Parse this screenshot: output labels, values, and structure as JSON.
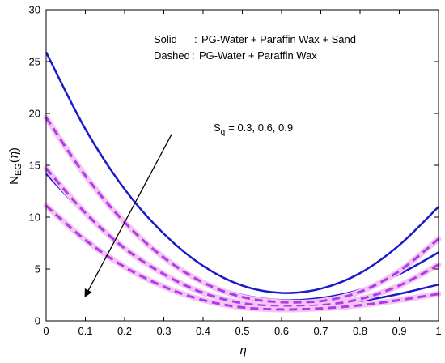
{
  "chart_data": {
    "type": "line",
    "xlabel": "η",
    "ylabel": {
      "main": "N",
      "sub": "EG",
      "arg_open": "(",
      "arg": "η",
      "arg_close": ")"
    },
    "xlim": [
      0,
      1
    ],
    "ylim": [
      0,
      30
    ],
    "xticks": [
      0,
      0.1,
      0.2,
      0.3,
      0.4,
      0.5,
      0.6,
      0.7,
      0.8,
      0.9,
      1
    ],
    "yticks": [
      0,
      5,
      10,
      15,
      20,
      25,
      30
    ],
    "xtick_labels": [
      "0",
      "0.1",
      "0.2",
      "0.3",
      "0.4",
      "0.5",
      "0.6",
      "0.7",
      "0.8",
      "0.9",
      "1"
    ],
    "ytick_labels": [
      "0",
      "5",
      "10",
      "15",
      "20",
      "25",
      "30"
    ],
    "grid": false,
    "legend_text": {
      "solid_key": "Solid",
      "solid_sep": ":",
      "solid_desc": "PG-Water + Paraffin Wax + Sand",
      "dashed_key": "Dashed",
      "dashed_sep": ":",
      "dashed_desc": "PG-Water + Paraffin Wax"
    },
    "annotation": {
      "prefix": "S",
      "sub": "q",
      "values": "= 0.3, 0.6, 0.9",
      "arrow_from": [
        0.32,
        18.0
      ],
      "arrow_to": [
        0.1,
        2.4
      ]
    },
    "colors": {
      "solid": "#1a1acc",
      "dashed": "#b03ae8",
      "dashed_glow": "#f4c4f4"
    },
    "series": [
      {
        "style": "solid",
        "x": [
          0,
          0.1,
          0.2,
          0.3,
          0.4,
          0.5,
          0.6,
          0.7,
          0.8,
          0.9,
          1
        ],
        "y": [
          25.9,
          18.5,
          12.7,
          8.4,
          5.3,
          3.4,
          2.7,
          3.1,
          4.6,
          7.3,
          11.0
        ]
      },
      {
        "style": "solid",
        "x": [
          0,
          0.1,
          0.2,
          0.3,
          0.4,
          0.5,
          0.6,
          0.7,
          0.8,
          0.9,
          1
        ],
        "y": [
          19.3,
          13.8,
          9.4,
          6.1,
          3.8,
          2.5,
          2.0,
          2.2,
          3.0,
          4.5,
          6.6
        ]
      },
      {
        "style": "solid",
        "x": [
          0,
          0.1,
          0.2,
          0.3,
          0.4,
          0.5,
          0.6,
          0.7,
          0.8,
          0.9,
          1
        ],
        "y": [
          14.2,
          10.2,
          6.9,
          4.4,
          2.7,
          1.7,
          1.4,
          1.5,
          1.9,
          2.6,
          3.5
        ]
      },
      {
        "style": "dashed",
        "x": [
          0,
          0.1,
          0.2,
          0.3,
          0.4,
          0.5,
          0.6,
          0.7,
          0.8,
          0.9,
          1
        ],
        "y": [
          19.6,
          14.0,
          9.5,
          6.1,
          3.7,
          2.3,
          1.8,
          1.9,
          2.8,
          4.8,
          7.9
        ]
      },
      {
        "style": "dashed",
        "x": [
          0,
          0.1,
          0.2,
          0.3,
          0.4,
          0.5,
          0.6,
          0.7,
          0.8,
          0.9,
          1
        ],
        "y": [
          14.7,
          10.4,
          7.0,
          4.5,
          2.7,
          1.7,
          1.4,
          1.5,
          2.1,
          3.4,
          5.4
        ]
      },
      {
        "style": "dashed",
        "x": [
          0,
          0.1,
          0.2,
          0.3,
          0.4,
          0.5,
          0.6,
          0.7,
          0.8,
          0.9,
          1
        ],
        "y": [
          11.1,
          7.8,
          5.2,
          3.3,
          2.0,
          1.3,
          1.1,
          1.2,
          1.5,
          2.0,
          2.6
        ]
      }
    ]
  }
}
